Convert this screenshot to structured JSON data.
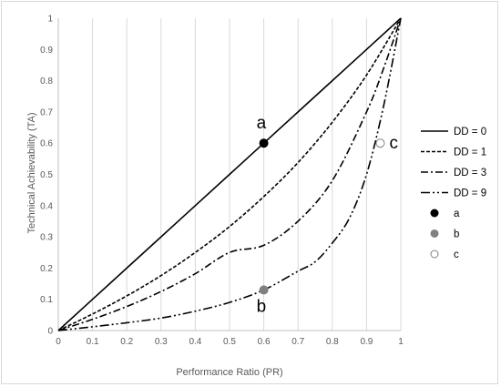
{
  "chart_data": {
    "type": "line",
    "title": "",
    "xlabel": "Performance Ratio (PR)",
    "ylabel": "Technical Achievability (TA)",
    "xlim": [
      0,
      1
    ],
    "ylim": [
      0,
      1
    ],
    "xticks": [
      "0",
      "0.1",
      "0.2",
      "0.3",
      "0.4",
      "0.5",
      "0.6",
      "0.7",
      "0.8",
      "0.9",
      "1"
    ],
    "yticks": [
      "0",
      "0.1",
      "0.2",
      "0.3",
      "0.4",
      "0.5",
      "0.6",
      "0.7",
      "0.8",
      "0.9",
      "1"
    ],
    "grid": "vertical",
    "legend_position": "right",
    "series": [
      {
        "name": "DD = 0",
        "style": "solid",
        "color": "#000000",
        "x": [
          0,
          0.1,
          0.2,
          0.3,
          0.4,
          0.5,
          0.6,
          0.7,
          0.8,
          0.9,
          1
        ],
        "y": [
          0,
          0.1,
          0.2,
          0.3,
          0.4,
          0.5,
          0.6,
          0.7,
          0.8,
          0.9,
          1
        ]
      },
      {
        "name": "DD = 1",
        "style": "short-dash",
        "color": "#000000",
        "x": [
          0,
          0.1,
          0.2,
          0.3,
          0.4,
          0.5,
          0.6,
          0.7,
          0.8,
          0.9,
          1
        ],
        "y": [
          0,
          0.053,
          0.111,
          0.176,
          0.25,
          0.333,
          0.429,
          0.538,
          0.667,
          0.818,
          1
        ]
      },
      {
        "name": "DD = 3",
        "style": "dash-dot",
        "color": "#000000",
        "x": [
          0,
          0.1,
          0.2,
          0.3,
          0.4,
          0.5,
          0.6,
          0.7,
          0.8,
          0.9,
          0.95,
          1
        ],
        "y": [
          0,
          0.036,
          0.077,
          0.125,
          0.182,
          0.25,
          0.273,
          0.35,
          0.48,
          0.7,
          0.84,
          1
        ]
      },
      {
        "name": "DD = 9",
        "style": "long-dash-dot-dot",
        "color": "#000000",
        "x": [
          0,
          0.1,
          0.2,
          0.3,
          0.4,
          0.5,
          0.6,
          0.7,
          0.75,
          0.8,
          0.85,
          0.9,
          0.95,
          1
        ],
        "y": [
          0,
          0.012,
          0.025,
          0.04,
          0.062,
          0.09,
          0.13,
          0.19,
          0.22,
          0.28,
          0.36,
          0.5,
          0.72,
          1
        ]
      }
    ],
    "points": [
      {
        "name": "a",
        "x": 0.6,
        "y": 0.6,
        "color": "#000000",
        "label": "a"
      },
      {
        "name": "b",
        "x": 0.6,
        "y": 0.13,
        "color": "#808080",
        "label": "b"
      },
      {
        "name": "c",
        "x": 0.94,
        "y": 0.6,
        "color": "#ffffff",
        "label": "c"
      }
    ],
    "colors": {
      "axis": "#bfbfbf",
      "grid": "#d9d9d9",
      "text": "#595959"
    }
  }
}
